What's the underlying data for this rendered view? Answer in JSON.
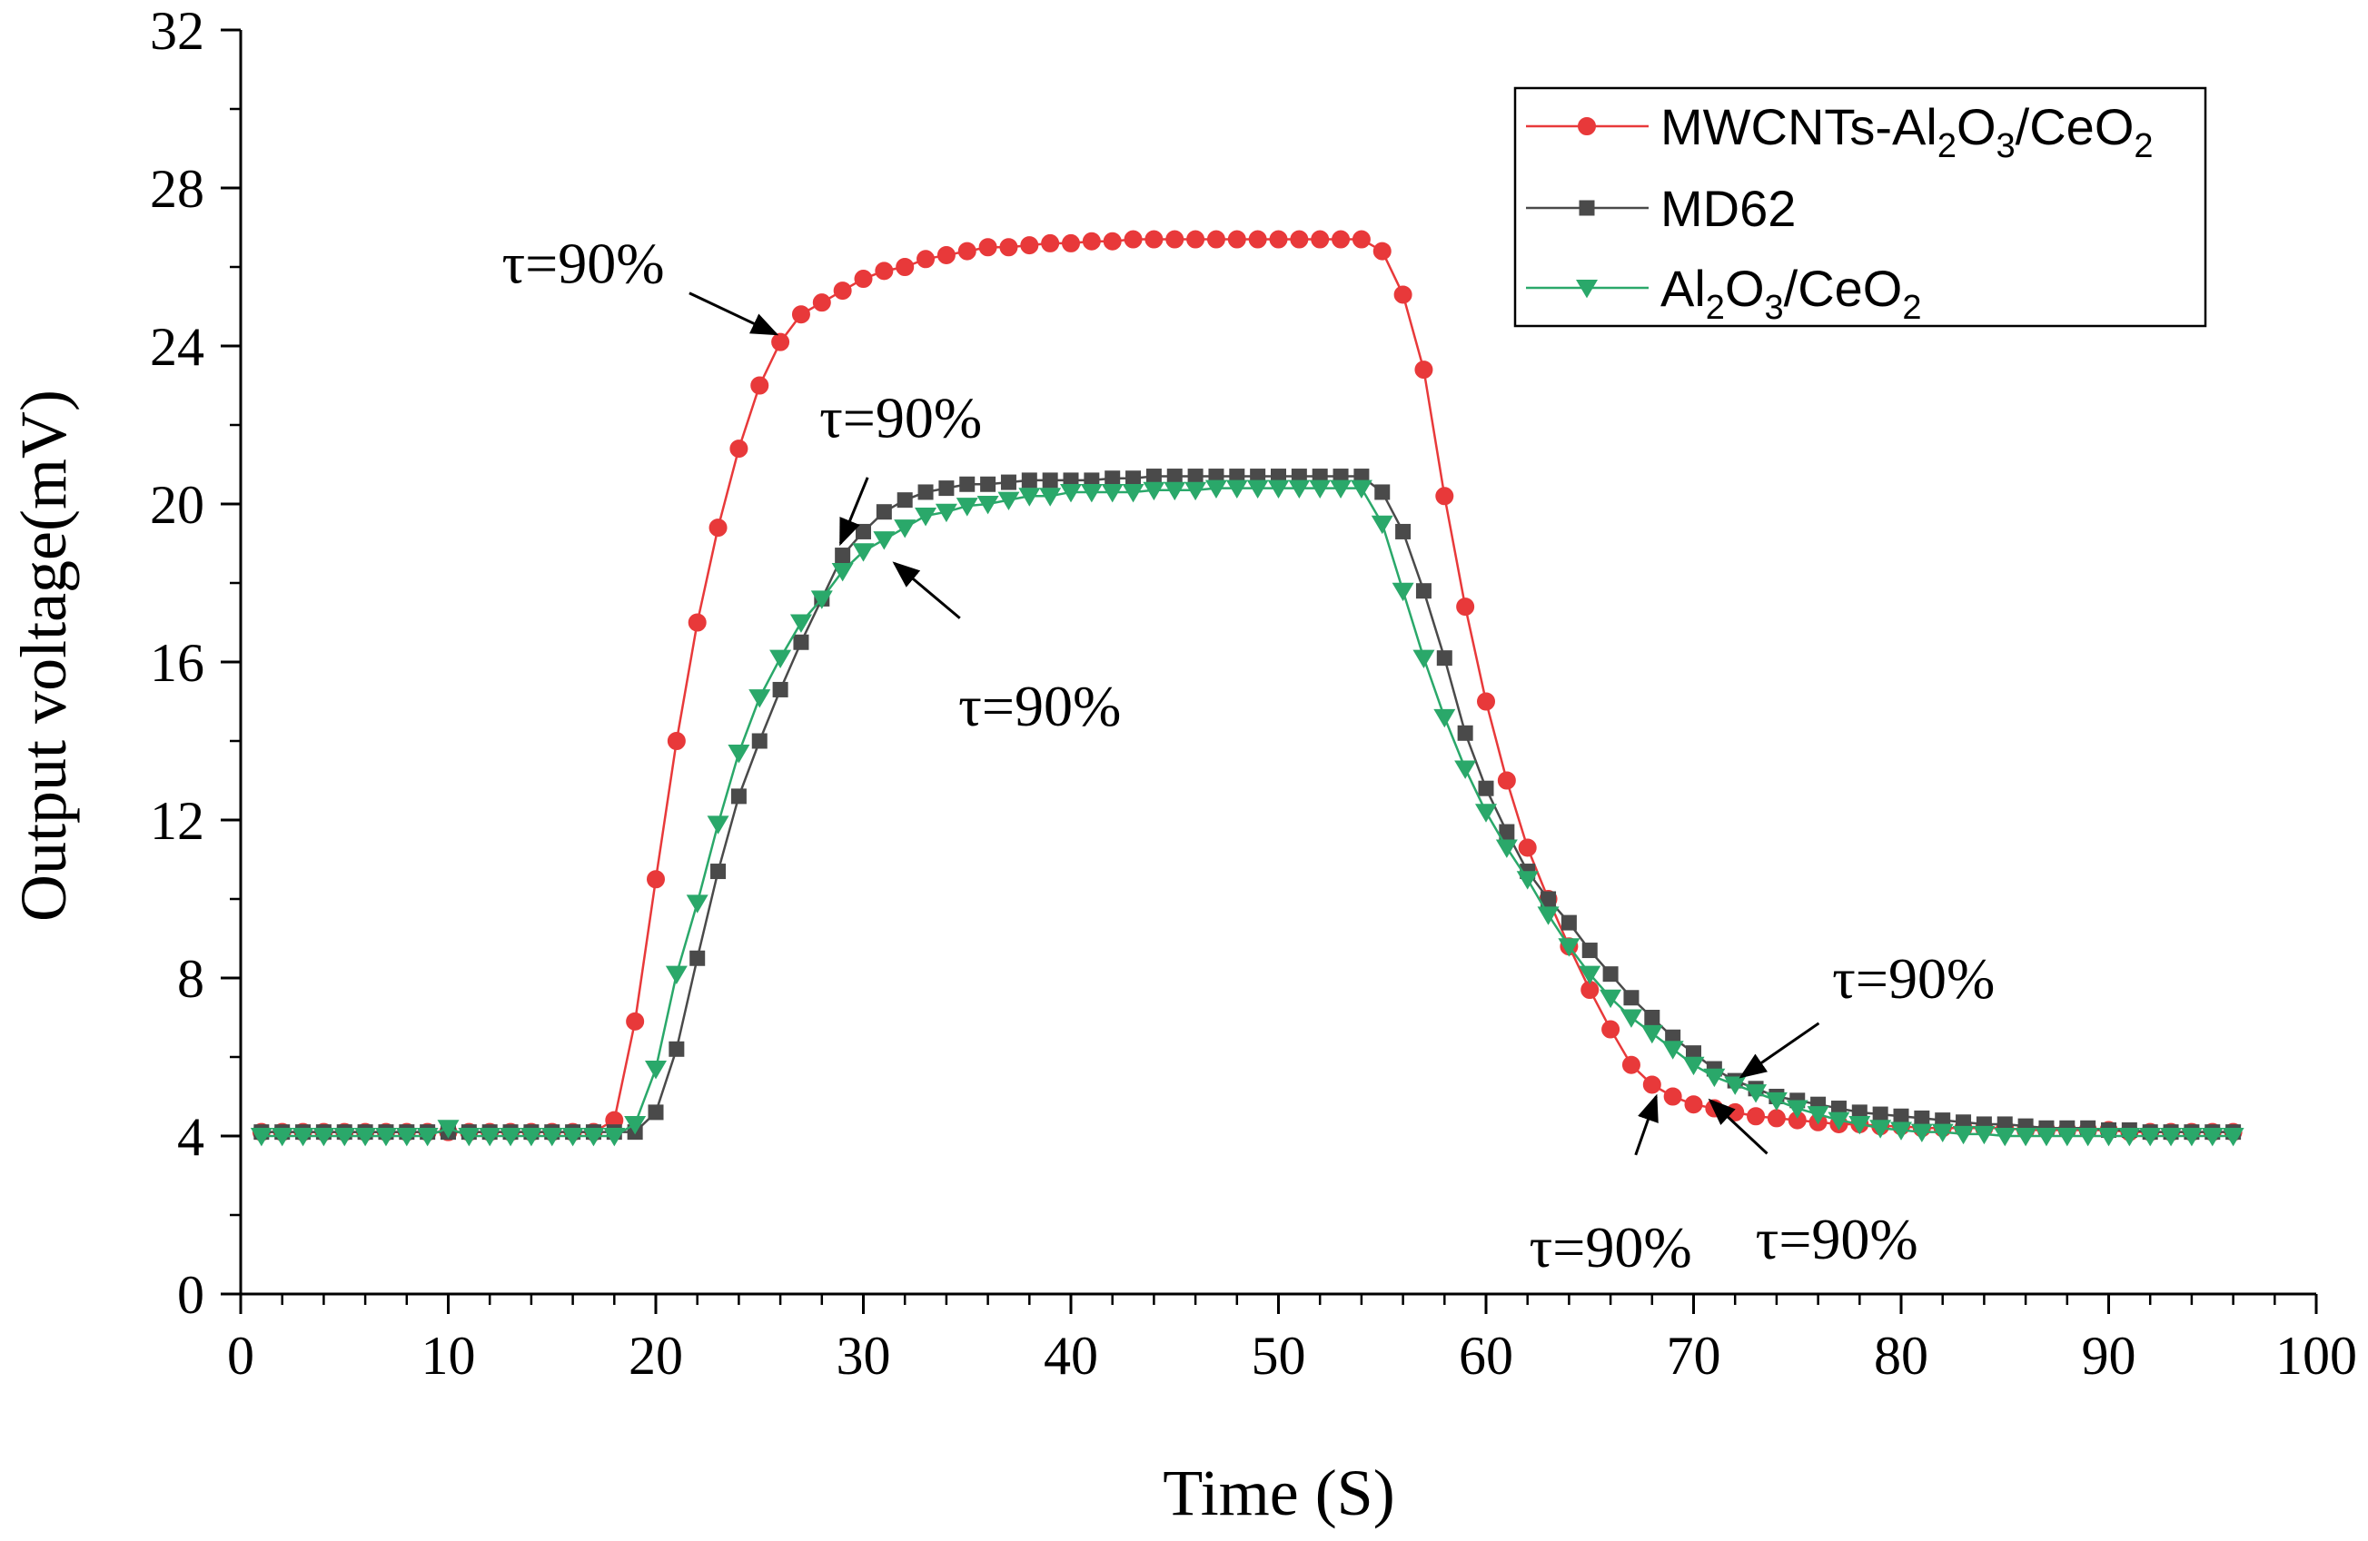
{
  "chart_data": {
    "type": "line",
    "xlabel": "Time (S)",
    "ylabel": "Output voltage(mV)",
    "xlim": [
      0,
      100
    ],
    "ylim": [
      0,
      32
    ],
    "xticks": [
      0,
      10,
      20,
      30,
      40,
      50,
      60,
      70,
      80,
      90,
      100
    ],
    "yticks": [
      0,
      4,
      8,
      12,
      16,
      20,
      24,
      28,
      32
    ],
    "grid": false,
    "legend_position": "top-right",
    "series": [
      {
        "name": "MWCNTs-Al2O3/CeO2",
        "legend_parts": [
          [
            "MWCNTs-Al",
            ""
          ],
          [
            "2",
            "sub"
          ],
          [
            "O",
            ""
          ],
          [
            "3",
            "sub"
          ],
          [
            "/CeO",
            ""
          ],
          [
            "2",
            "sub"
          ]
        ],
        "color": "#e8393a",
        "marker": "circle",
        "x": [
          1,
          2,
          3,
          4,
          5,
          6,
          7,
          8,
          9,
          10,
          11,
          12,
          13,
          14,
          15,
          16,
          17,
          18,
          19,
          20,
          21,
          22,
          23,
          24,
          25,
          26,
          27,
          28,
          29,
          30,
          31,
          32,
          33,
          34,
          35,
          36,
          37,
          38,
          39,
          40,
          41,
          42,
          43,
          44,
          45,
          46,
          47,
          48,
          49,
          50,
          51,
          52,
          53,
          54,
          55,
          56,
          57,
          58,
          59,
          60,
          61,
          62,
          63,
          64,
          65,
          66,
          67,
          68,
          69,
          70,
          71,
          72,
          73,
          74,
          75,
          76,
          77,
          78,
          79,
          80,
          81,
          82,
          83,
          84,
          85,
          86,
          87,
          88,
          89,
          90,
          91,
          92,
          93,
          94,
          95,
          96
        ],
        "values": [
          4.1,
          4.1,
          4.1,
          4.1,
          4.1,
          4.1,
          4.1,
          4.1,
          4.1,
          4.1,
          4.1,
          4.1,
          4.1,
          4.1,
          4.1,
          4.1,
          4.1,
          4.4,
          6.9,
          10.5,
          14.0,
          17.0,
          19.4,
          21.4,
          23.0,
          24.1,
          24.8,
          25.1,
          25.4,
          25.7,
          25.9,
          26.0,
          26.2,
          26.3,
          26.4,
          26.5,
          26.5,
          26.55,
          26.6,
          26.6,
          26.65,
          26.65,
          26.7,
          26.7,
          26.7,
          26.7,
          26.7,
          26.7,
          26.7,
          26.7,
          26.7,
          26.7,
          26.7,
          26.7,
          26.4,
          25.3,
          23.4,
          20.2,
          17.4,
          15.0,
          13.0,
          11.3,
          10.0,
          8.8,
          7.7,
          6.7,
          5.8,
          5.3,
          5.0,
          4.8,
          4.7,
          4.6,
          4.5,
          4.45,
          4.4,
          4.35,
          4.3,
          4.3,
          4.25,
          4.25,
          4.2,
          4.2,
          4.2,
          4.2,
          4.2,
          4.15,
          4.15,
          4.15,
          4.15,
          4.15,
          4.1,
          4.1,
          4.1,
          4.1,
          4.1,
          4.1
        ]
      },
      {
        "name": "MD62",
        "legend_parts": [
          [
            "MD62",
            ""
          ]
        ],
        "color": "#4a4a4a",
        "marker": "square",
        "x": [
          1,
          2,
          3,
          4,
          5,
          6,
          7,
          8,
          9,
          10,
          11,
          12,
          13,
          14,
          15,
          16,
          17,
          18,
          19,
          20,
          21,
          22,
          23,
          24,
          25,
          26,
          27,
          28,
          29,
          30,
          31,
          32,
          33,
          34,
          35,
          36,
          37,
          38,
          39,
          40,
          41,
          42,
          43,
          44,
          45,
          46,
          47,
          48,
          49,
          50,
          51,
          52,
          53,
          54,
          55,
          56,
          57,
          58,
          59,
          60,
          61,
          62,
          63,
          64,
          65,
          66,
          67,
          68,
          69,
          70,
          71,
          72,
          73,
          74,
          75,
          76,
          77,
          78,
          79,
          80,
          81,
          82,
          83,
          84,
          85,
          86,
          87,
          88,
          89,
          90,
          91,
          92,
          93,
          94,
          95,
          96
        ],
        "values": [
          4.1,
          4.1,
          4.1,
          4.1,
          4.1,
          4.1,
          4.1,
          4.1,
          4.1,
          4.1,
          4.1,
          4.1,
          4.1,
          4.1,
          4.1,
          4.1,
          4.1,
          4.1,
          4.1,
          4.6,
          6.2,
          8.5,
          10.7,
          12.6,
          14.0,
          15.3,
          16.5,
          17.6,
          18.7,
          19.3,
          19.8,
          20.1,
          20.3,
          20.4,
          20.5,
          20.5,
          20.55,
          20.6,
          20.6,
          20.6,
          20.6,
          20.65,
          20.65,
          20.7,
          20.7,
          20.7,
          20.7,
          20.7,
          20.7,
          20.7,
          20.7,
          20.7,
          20.7,
          20.7,
          20.3,
          19.3,
          17.8,
          16.1,
          14.2,
          12.8,
          11.7,
          10.7,
          10.0,
          9.4,
          8.7,
          8.1,
          7.5,
          7.0,
          6.5,
          6.1,
          5.7,
          5.4,
          5.2,
          5.0,
          4.9,
          4.8,
          4.7,
          4.6,
          4.55,
          4.5,
          4.45,
          4.4,
          4.35,
          4.3,
          4.3,
          4.25,
          4.2,
          4.2,
          4.2,
          4.15,
          4.15,
          4.1,
          4.1,
          4.1,
          4.1,
          4.1
        ]
      },
      {
        "name": "Al2O3/CeO2",
        "legend_parts": [
          [
            "Al",
            ""
          ],
          [
            "2",
            "sub"
          ],
          [
            "O",
            ""
          ],
          [
            "3",
            "sub"
          ],
          [
            "/CeO",
            ""
          ],
          [
            "2",
            "sub"
          ]
        ],
        "color": "#2aa86a",
        "marker": "triangle-down",
        "x": [
          1,
          2,
          3,
          4,
          5,
          6,
          7,
          8,
          9,
          10,
          11,
          12,
          13,
          14,
          15,
          16,
          17,
          18,
          19,
          20,
          21,
          22,
          23,
          24,
          25,
          26,
          27,
          28,
          29,
          30,
          31,
          32,
          33,
          34,
          35,
          36,
          37,
          38,
          39,
          40,
          41,
          42,
          43,
          44,
          45,
          46,
          47,
          48,
          49,
          50,
          51,
          52,
          53,
          54,
          55,
          56,
          57,
          58,
          59,
          60,
          61,
          62,
          63,
          64,
          65,
          66,
          67,
          68,
          69,
          70,
          71,
          72,
          73,
          74,
          75,
          76,
          77,
          78,
          79,
          80,
          81,
          82,
          83,
          84,
          85,
          86,
          87,
          88,
          89,
          90,
          91,
          92,
          93,
          94,
          95,
          96
        ],
        "values": [
          4.0,
          4.0,
          4.0,
          4.0,
          4.0,
          4.0,
          4.0,
          4.0,
          4.0,
          4.2,
          4.0,
          4.0,
          4.0,
          4.0,
          4.0,
          4.0,
          4.0,
          4.0,
          4.3,
          5.7,
          8.1,
          9.9,
          11.9,
          13.7,
          15.1,
          16.1,
          17.0,
          17.6,
          18.3,
          18.8,
          19.1,
          19.4,
          19.7,
          19.8,
          19.95,
          20.0,
          20.1,
          20.2,
          20.2,
          20.3,
          20.3,
          20.3,
          20.3,
          20.35,
          20.35,
          20.35,
          20.4,
          20.4,
          20.4,
          20.4,
          20.4,
          20.4,
          20.4,
          20.4,
          19.5,
          17.8,
          16.1,
          14.6,
          13.3,
          12.2,
          11.3,
          10.5,
          9.6,
          8.8,
          8.1,
          7.5,
          7.0,
          6.6,
          6.2,
          5.8,
          5.5,
          5.3,
          5.1,
          4.9,
          4.7,
          4.55,
          4.4,
          4.3,
          4.2,
          4.15,
          4.1,
          4.1,
          4.05,
          4.05,
          4.0,
          4.0,
          4.0,
          4.0,
          4.0,
          4.0,
          4.0,
          4.0,
          4.0,
          4.0,
          4.0,
          4.0
        ]
      }
    ],
    "annotations": [
      {
        "text": "τ=90%",
        "point": [
          25.8,
          24.3
        ],
        "text_at": [
          16.5,
          26.1
        ],
        "anchor": "middle"
      },
      {
        "text": "τ=90%",
        "point": [
          28.9,
          19.0
        ],
        "text_at": [
          31.8,
          22.2
        ],
        "anchor": "middle"
      },
      {
        "text": "τ=90%",
        "point": [
          31.5,
          18.5
        ],
        "text_at": [
          38.5,
          14.9
        ],
        "anchor": "middle"
      },
      {
        "text": "τ=90%",
        "point": [
          72.3,
          5.5
        ],
        "text_at": [
          80.6,
          8.0
        ],
        "anchor": "middle"
      },
      {
        "text": "τ=90%",
        "point": [
          68.2,
          5.0
        ],
        "text_at": [
          66.0,
          1.2
        ],
        "anchor": "middle"
      },
      {
        "text": "τ=90%",
        "point": [
          70.8,
          4.9
        ],
        "text_at": [
          76.9,
          1.4
        ],
        "anchor": "middle"
      }
    ]
  }
}
